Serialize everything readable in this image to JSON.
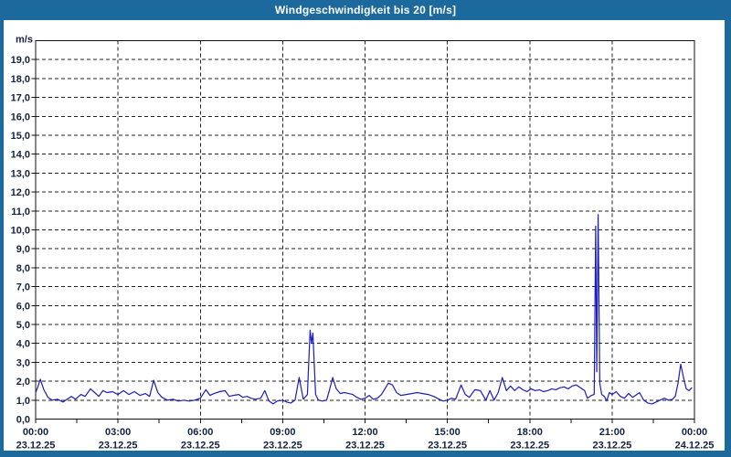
{
  "window": {
    "title": "Windgeschwindigkeit bis 20 [m/s]"
  },
  "colors": {
    "frame": "#1c699e",
    "title_text": "#ffffff",
    "plot_bg": "#ffffff",
    "grid": "#222222",
    "axis": "#111111",
    "tick_label": "#14213d",
    "line": "#1c1cb8"
  },
  "chart_data": {
    "type": "line",
    "title": "Windgeschwindigkeit bis 20 [m/s]",
    "ylabel_unit": "m/s",
    "ylim": [
      0,
      20
    ],
    "xlim_hours": [
      0,
      24
    ],
    "grid": "dashed",
    "legend": "none",
    "y_tick_step": 1.0,
    "y_tick_labels": [
      "0,0",
      "1,0",
      "2,0",
      "3,0",
      "4,0",
      "5,0",
      "6,0",
      "7,0",
      "8,0",
      "9,0",
      "10,0",
      "11,0",
      "12,0",
      "13,0",
      "14,0",
      "15,0",
      "16,0",
      "17,0",
      "18,0",
      "19,0"
    ],
    "x_minor_tick_hours": 1.5,
    "x_major_ticks": [
      {
        "hour": 0,
        "time": "00:00",
        "date": "23.12.25"
      },
      {
        "hour": 3,
        "time": "03:00",
        "date": "23.12.25"
      },
      {
        "hour": 6,
        "time": "06:00",
        "date": "23.12.25"
      },
      {
        "hour": 9,
        "time": "09:00",
        "date": "23.12.25"
      },
      {
        "hour": 12,
        "time": "12:00",
        "date": "23.12.25"
      },
      {
        "hour": 15,
        "time": "15:00",
        "date": "23.12.25"
      },
      {
        "hour": 18,
        "time": "18:00",
        "date": "23.12.25"
      },
      {
        "hour": 21,
        "time": "21:00",
        "date": "23.12.25"
      },
      {
        "hour": 24,
        "time": "00:00",
        "date": "24.12.25"
      }
    ],
    "series": [
      {
        "name": "Windgeschwindigkeit",
        "points": [
          [
            0.0,
            1.4
          ],
          [
            0.08,
            1.7
          ],
          [
            0.17,
            2.1
          ],
          [
            0.3,
            1.55
          ],
          [
            0.45,
            1.15
          ],
          [
            0.6,
            1.0
          ],
          [
            0.8,
            1.05
          ],
          [
            1.0,
            0.9
          ],
          [
            1.15,
            1.05
          ],
          [
            1.3,
            1.2
          ],
          [
            1.45,
            1.05
          ],
          [
            1.65,
            1.3
          ],
          [
            1.8,
            1.2
          ],
          [
            2.0,
            1.6
          ],
          [
            2.15,
            1.4
          ],
          [
            2.3,
            1.2
          ],
          [
            2.45,
            1.5
          ],
          [
            2.6,
            1.4
          ],
          [
            2.8,
            1.45
          ],
          [
            3.0,
            1.3
          ],
          [
            3.2,
            1.5
          ],
          [
            3.4,
            1.3
          ],
          [
            3.6,
            1.45
          ],
          [
            3.8,
            1.25
          ],
          [
            4.0,
            1.35
          ],
          [
            4.15,
            1.2
          ],
          [
            4.3,
            2.05
          ],
          [
            4.45,
            1.4
          ],
          [
            4.6,
            1.15
          ],
          [
            4.8,
            1.0
          ],
          [
            5.0,
            1.05
          ],
          [
            5.2,
            0.95
          ],
          [
            5.4,
            1.0
          ],
          [
            5.6,
            0.95
          ],
          [
            5.8,
            1.0
          ],
          [
            6.0,
            1.1
          ],
          [
            6.2,
            1.55
          ],
          [
            6.35,
            1.25
          ],
          [
            6.5,
            1.35
          ],
          [
            6.7,
            1.45
          ],
          [
            6.9,
            1.5
          ],
          [
            7.05,
            1.2
          ],
          [
            7.2,
            1.25
          ],
          [
            7.4,
            1.3
          ],
          [
            7.55,
            1.15
          ],
          [
            7.7,
            1.2
          ],
          [
            7.85,
            1.1
          ],
          [
            8.0,
            1.05
          ],
          [
            8.2,
            1.1
          ],
          [
            8.35,
            1.5
          ],
          [
            8.5,
            0.95
          ],
          [
            8.65,
            0.8
          ],
          [
            8.8,
            0.95
          ],
          [
            9.0,
            1.0
          ],
          [
            9.15,
            0.9
          ],
          [
            9.3,
            0.85
          ],
          [
            9.45,
            1.0
          ],
          [
            9.6,
            2.2
          ],
          [
            9.75,
            1.05
          ],
          [
            9.9,
            1.3
          ],
          [
            10.0,
            4.7
          ],
          [
            10.05,
            4.0
          ],
          [
            10.1,
            4.55
          ],
          [
            10.2,
            1.3
          ],
          [
            10.3,
            1.0
          ],
          [
            10.45,
            0.95
          ],
          [
            10.6,
            1.0
          ],
          [
            10.7,
            1.5
          ],
          [
            10.82,
            2.2
          ],
          [
            10.95,
            1.6
          ],
          [
            11.1,
            1.35
          ],
          [
            11.25,
            1.4
          ],
          [
            11.4,
            1.35
          ],
          [
            11.55,
            1.3
          ],
          [
            11.7,
            1.15
          ],
          [
            11.85,
            1.05
          ],
          [
            12.0,
            1.1
          ],
          [
            12.15,
            1.25
          ],
          [
            12.3,
            1.05
          ],
          [
            12.45,
            1.1
          ],
          [
            12.6,
            1.3
          ],
          [
            12.85,
            1.9
          ],
          [
            13.0,
            1.8
          ],
          [
            13.15,
            1.4
          ],
          [
            13.3,
            1.25
          ],
          [
            13.5,
            1.3
          ],
          [
            13.7,
            1.35
          ],
          [
            13.9,
            1.4
          ],
          [
            14.1,
            1.35
          ],
          [
            14.3,
            1.3
          ],
          [
            14.5,
            1.2
          ],
          [
            14.7,
            1.05
          ],
          [
            14.85,
            0.95
          ],
          [
            15.0,
            1.0
          ],
          [
            15.15,
            1.1
          ],
          [
            15.3,
            1.05
          ],
          [
            15.5,
            1.8
          ],
          [
            15.65,
            1.3
          ],
          [
            15.8,
            1.15
          ],
          [
            16.0,
            1.55
          ],
          [
            16.2,
            1.5
          ],
          [
            16.4,
            1.0
          ],
          [
            16.55,
            1.5
          ],
          [
            16.7,
            1.0
          ],
          [
            16.85,
            1.4
          ],
          [
            17.0,
            2.2
          ],
          [
            17.15,
            1.5
          ],
          [
            17.3,
            1.75
          ],
          [
            17.45,
            1.5
          ],
          [
            17.6,
            1.7
          ],
          [
            17.75,
            1.55
          ],
          [
            17.9,
            1.45
          ],
          [
            18.05,
            1.6
          ],
          [
            18.2,
            1.5
          ],
          [
            18.35,
            1.55
          ],
          [
            18.5,
            1.45
          ],
          [
            18.65,
            1.5
          ],
          [
            18.8,
            1.6
          ],
          [
            18.95,
            1.55
          ],
          [
            19.1,
            1.65
          ],
          [
            19.25,
            1.7
          ],
          [
            19.4,
            1.6
          ],
          [
            19.55,
            1.75
          ],
          [
            19.7,
            1.8
          ],
          [
            19.85,
            1.65
          ],
          [
            20.0,
            1.5
          ],
          [
            20.1,
            1.1
          ],
          [
            20.25,
            1.25
          ],
          [
            20.35,
            1.3
          ],
          [
            20.4,
            10.2
          ],
          [
            20.44,
            2.5
          ],
          [
            20.49,
            10.8
          ],
          [
            20.55,
            1.9
          ],
          [
            20.62,
            1.3
          ],
          [
            20.72,
            1.2
          ],
          [
            20.8,
            0.95
          ],
          [
            20.9,
            1.4
          ],
          [
            21.0,
            1.3
          ],
          [
            21.15,
            1.45
          ],
          [
            21.3,
            1.2
          ],
          [
            21.45,
            1.1
          ],
          [
            21.6,
            1.35
          ],
          [
            21.75,
            1.15
          ],
          [
            21.9,
            1.3
          ],
          [
            22.0,
            1.4
          ],
          [
            22.15,
            1.0
          ],
          [
            22.3,
            0.85
          ],
          [
            22.45,
            0.8
          ],
          [
            22.6,
            0.9
          ],
          [
            22.75,
            1.0
          ],
          [
            22.9,
            1.1
          ],
          [
            23.05,
            1.0
          ],
          [
            23.2,
            1.05
          ],
          [
            23.3,
            1.2
          ],
          [
            23.4,
            1.9
          ],
          [
            23.5,
            2.9
          ],
          [
            23.6,
            2.2
          ],
          [
            23.7,
            1.6
          ],
          [
            23.8,
            1.5
          ],
          [
            23.9,
            1.65
          ]
        ]
      }
    ]
  }
}
